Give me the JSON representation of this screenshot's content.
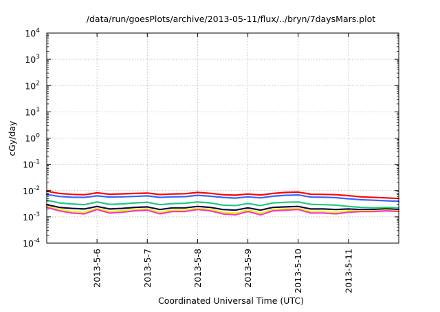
{
  "chart_data": {
    "type": "line",
    "title": "/data/run/goesPlots/archive/2013-05-11/flux/../bryn/7daysMars.plot",
    "xlabel": "Coordinated Universal Time (UTC)",
    "ylabel": "cGy/day",
    "y_scale": "log",
    "ylim": [
      0.0001,
      10000
    ],
    "xlim": [
      "2013-05-05T00:00",
      "2013-05-12T00:00"
    ],
    "grid": true,
    "legend": "none",
    "y_ticks": [
      {
        "base": "10",
        "exp": "-4"
      },
      {
        "base": "10",
        "exp": "-3"
      },
      {
        "base": "10",
        "exp": "-2"
      },
      {
        "base": "10",
        "exp": "-1"
      },
      {
        "base": "10",
        "exp": "0"
      },
      {
        "base": "10",
        "exp": "1"
      },
      {
        "base": "10",
        "exp": "2"
      },
      {
        "base": "10",
        "exp": "3"
      },
      {
        "base": "10",
        "exp": "4"
      }
    ],
    "x_ticks": [
      "2013-5-6",
      "2013-5-7",
      "2013-5-8",
      "2013-5-9",
      "2013-5-10",
      "2013-5-11"
    ],
    "x": [
      "2013-05-05T00:00",
      "2013-05-05T06:00",
      "2013-05-05T12:00",
      "2013-05-05T18:00",
      "2013-05-06T00:00",
      "2013-05-06T06:00",
      "2013-05-06T12:00",
      "2013-05-06T18:00",
      "2013-05-07T00:00",
      "2013-05-07T06:00",
      "2013-05-07T12:00",
      "2013-05-07T18:00",
      "2013-05-08T00:00",
      "2013-05-08T06:00",
      "2013-05-08T12:00",
      "2013-05-08T18:00",
      "2013-05-09T00:00",
      "2013-05-09T06:00",
      "2013-05-09T12:00",
      "2013-05-09T18:00",
      "2013-05-10T00:00",
      "2013-05-10T06:00",
      "2013-05-10T12:00",
      "2013-05-10T18:00",
      "2013-05-11T00:00",
      "2013-05-11T06:00",
      "2013-05-11T12:00",
      "2013-05-11T18:00",
      "2013-05-12T00:00"
    ],
    "series": [
      {
        "color": "#ff0000",
        "values": [
          0.0095,
          0.0078,
          0.0072,
          0.007,
          0.0082,
          0.0073,
          0.0075,
          0.0078,
          0.008,
          0.0071,
          0.0074,
          0.0076,
          0.0085,
          0.0079,
          0.007,
          0.0067,
          0.0074,
          0.0068,
          0.0078,
          0.0085,
          0.0088,
          0.0073,
          0.0072,
          0.007,
          0.0064,
          0.0058,
          0.0055,
          0.0053,
          0.005
        ]
      },
      {
        "color": "#3366ff",
        "values": [
          0.0071,
          0.006,
          0.0056,
          0.0055,
          0.0063,
          0.0057,
          0.0058,
          0.006,
          0.0063,
          0.0055,
          0.0058,
          0.0059,
          0.0066,
          0.0061,
          0.0055,
          0.0052,
          0.0058,
          0.0053,
          0.0061,
          0.0066,
          0.0068,
          0.0057,
          0.0056,
          0.0054,
          0.0049,
          0.0045,
          0.0043,
          0.0041,
          0.0039
        ]
      },
      {
        "color": "#20c880",
        "values": [
          0.0043,
          0.0034,
          0.0031,
          0.0029,
          0.0037,
          0.003,
          0.0031,
          0.0034,
          0.0036,
          0.0029,
          0.0032,
          0.0033,
          0.0037,
          0.0034,
          0.0028,
          0.0027,
          0.0032,
          0.0027,
          0.0034,
          0.0036,
          0.0037,
          0.003,
          0.0029,
          0.0028,
          0.0025,
          0.0023,
          0.0022,
          0.0023,
          0.0022
        ]
      },
      {
        "color": "#0a0a40",
        "values": [
          0.0029,
          0.0023,
          0.0021,
          0.002,
          0.0025,
          0.002,
          0.0021,
          0.0023,
          0.0024,
          0.0019,
          0.0022,
          0.0022,
          0.0025,
          0.0023,
          0.0019,
          0.0018,
          0.0022,
          0.0018,
          0.0023,
          0.0024,
          0.0025,
          0.002,
          0.002,
          0.0019,
          0.002,
          0.0019,
          0.0019,
          0.002,
          0.0019
        ]
      },
      {
        "color": "#e4ff00",
        "values": [
          0.0025,
          0.0019,
          0.0016,
          0.0015,
          0.0021,
          0.0016,
          0.0017,
          0.0019,
          0.002,
          0.0015,
          0.0018,
          0.0018,
          0.0021,
          0.0019,
          0.0015,
          0.0014,
          0.0018,
          0.0014,
          0.0019,
          0.002,
          0.0021,
          0.0016,
          0.0016,
          0.0015,
          0.0017,
          0.0017,
          0.0017,
          0.0018,
          0.0017
        ]
      },
      {
        "color": "#ff33cc",
        "values": [
          0.0023,
          0.0017,
          0.0014,
          0.0013,
          0.0019,
          0.0014,
          0.0015,
          0.0017,
          0.0018,
          0.0013,
          0.0016,
          0.0016,
          0.0019,
          0.0017,
          0.0013,
          0.0012,
          0.0016,
          0.0012,
          0.0017,
          0.0018,
          0.0019,
          0.0014,
          0.0014,
          0.0013,
          0.0015,
          0.0016,
          0.0016,
          0.0017,
          0.0016
        ]
      }
    ]
  }
}
